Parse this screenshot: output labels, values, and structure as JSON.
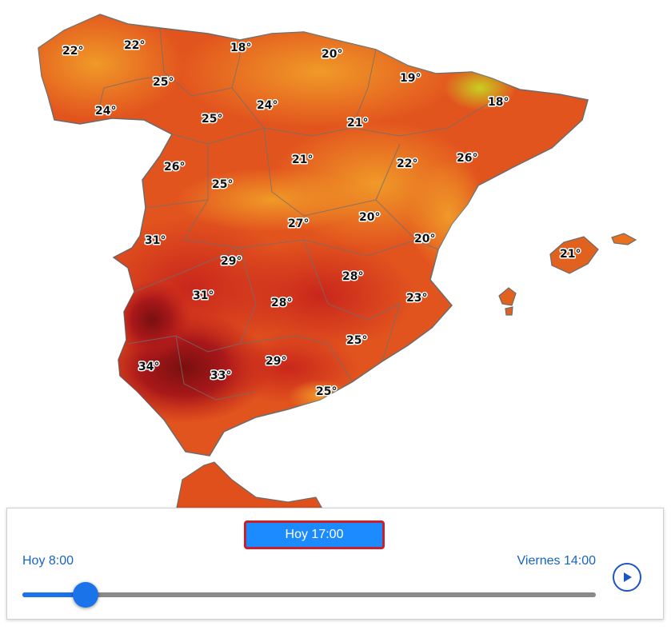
{
  "map": {
    "temperatures": [
      {
        "label": "22°"
      },
      {
        "label": "22°"
      },
      {
        "label": "18°"
      },
      {
        "label": "20°"
      },
      {
        "label": "25°"
      },
      {
        "label": "24°"
      },
      {
        "label": "19°"
      },
      {
        "label": "18°"
      },
      {
        "label": "25°"
      },
      {
        "label": "24°"
      },
      {
        "label": "21°"
      },
      {
        "label": "26°"
      },
      {
        "label": "21°"
      },
      {
        "label": "22°"
      },
      {
        "label": "26°"
      },
      {
        "label": "25°"
      },
      {
        "label": "27°"
      },
      {
        "label": "20°"
      },
      {
        "label": "20°"
      },
      {
        "label": "21°"
      },
      {
        "label": "31°"
      },
      {
        "label": "29°"
      },
      {
        "label": "28°"
      },
      {
        "label": "31°"
      },
      {
        "label": "28°"
      },
      {
        "label": "23°"
      },
      {
        "label": "25°"
      },
      {
        "label": "34°"
      },
      {
        "label": "29°"
      },
      {
        "label": "33°"
      },
      {
        "label": "25°"
      }
    ],
    "colors": {
      "hot": "#c0201a",
      "very_hot": "#7a0f0f",
      "warm": "#e0501c",
      "mild": "#f08a20",
      "cool": "#c8d020"
    }
  },
  "timeline": {
    "current_label": "Hoy 17:00",
    "start_label": "Hoy 8:00",
    "end_label": "Viernes 14:00",
    "progress": 0.11,
    "play_icon": "play-icon",
    "accent": "#1a73e8"
  }
}
